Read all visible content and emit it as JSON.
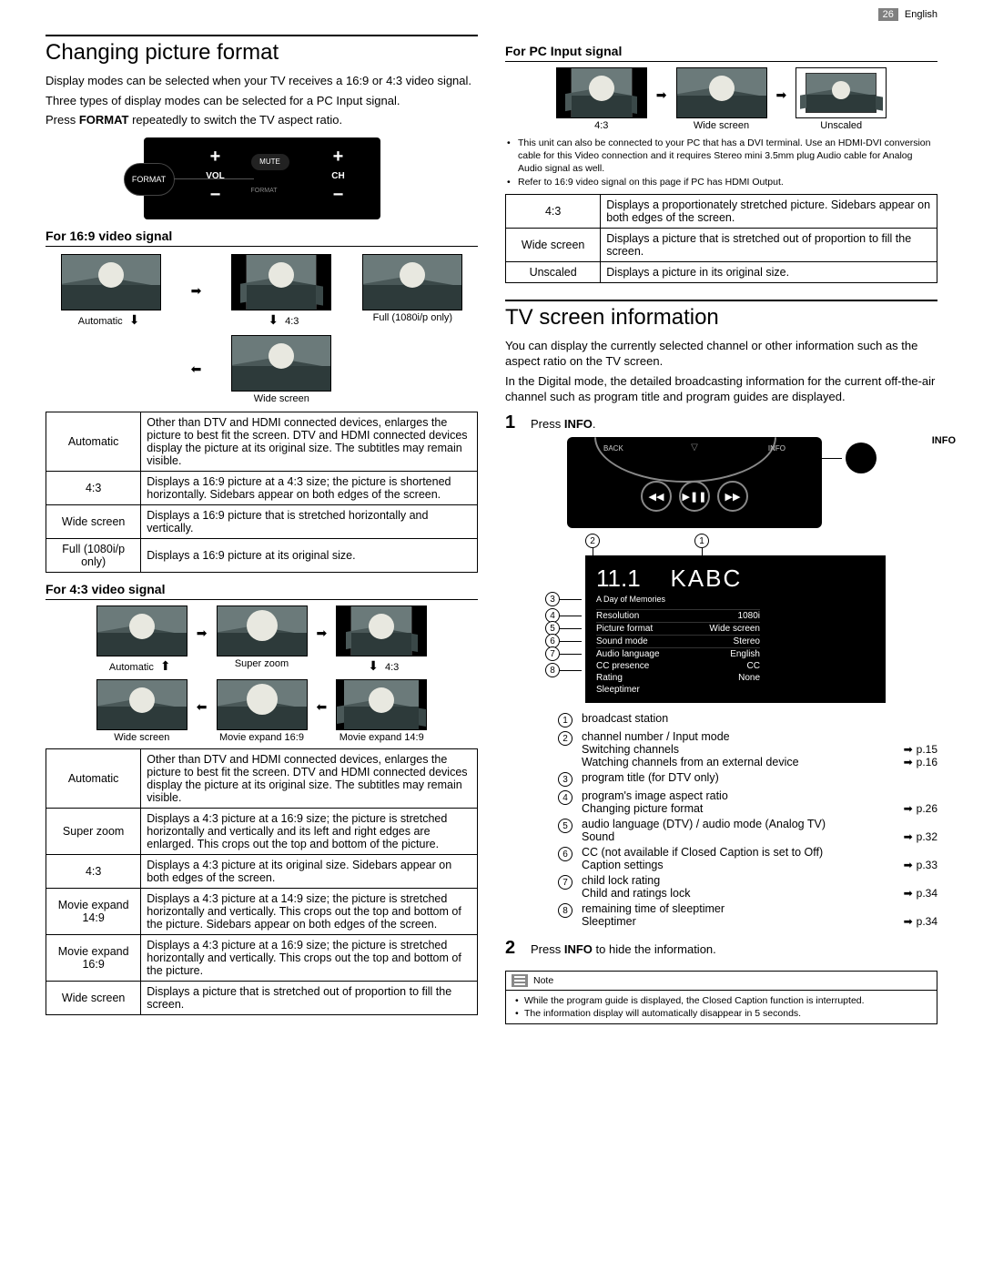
{
  "header": {
    "page": "26",
    "lang": "English"
  },
  "left": {
    "h1": "Changing picture format",
    "intro1": "Display modes can be selected when your TV receives a 16:9 or 4:3 video signal.",
    "intro2": "Three types of display modes can be selected for a PC Input signal.",
    "intro3_a": "Press ",
    "intro3_b": "FORMAT",
    "intro3_c": " repeatedly to switch the TV aspect ratio.",
    "remote": {
      "format": "FORMAT",
      "vol": "VOL",
      "ch": "CH",
      "mute": "MUTE",
      "fmt_small": "FORMAT"
    },
    "sec169": {
      "title": "For 16:9 video signal",
      "thumbs": {
        "automatic": "Automatic",
        "ratio43": "4:3",
        "full": "Full (1080i/p only)",
        "wide": "Wide screen"
      },
      "table": [
        {
          "k": "Automatic",
          "v": "Other than DTV and HDMI connected devices, enlarges the picture to best fit the screen.\nDTV and HDMI connected devices display the picture at its original size. The subtitles may remain visible."
        },
        {
          "k": "4:3",
          "v": "Displays a 16:9 picture at a 4:3 size; the picture is shortened horizontally.\nSidebars appear on both edges of the screen."
        },
        {
          "k": "Wide screen",
          "v": "Displays a 16:9 picture that is stretched horizontally and vertically."
        },
        {
          "k": "Full\n(1080i/p only)",
          "v": "Displays a 16:9 picture at its original size."
        }
      ]
    },
    "sec43": {
      "title": "For 4:3 video signal",
      "thumbs": {
        "automatic": "Automatic",
        "superzoom": "Super zoom",
        "ratio43": "4:3",
        "wide": "Wide screen",
        "me169": "Movie expand 16:9",
        "me149": "Movie expand 14:9"
      },
      "table": [
        {
          "k": "Automatic",
          "v": "Other than DTV and HDMI connected devices, enlarges the picture to best fit the screen.\nDTV and HDMI connected devices display the picture at its original size. The subtitles may remain visible."
        },
        {
          "k": "Super zoom",
          "v": "Displays a 4:3 picture at a 16:9 size; the picture is stretched horizontally and vertically and its left and right edges are enlarged. This crops out the top and bottom of the picture."
        },
        {
          "k": "4:3",
          "v": "Displays a 4:3 picture at its original size.\nSidebars appear on both edges of the screen."
        },
        {
          "k": "Movie expand 14:9",
          "v": "Displays a 4:3 picture at a 14:9 size; the picture is stretched horizontally and vertically.\nThis crops out the top and bottom of the picture. Sidebars appear on both edges of the screen."
        },
        {
          "k": "Movie expand 16:9",
          "v": "Displays a 4:3 picture at a 16:9 size; the picture is stretched horizontally and vertically.\nThis crops out the top and bottom of the picture."
        },
        {
          "k": "Wide screen",
          "v": "Displays a picture that is stretched out of proportion to fill the screen."
        }
      ]
    }
  },
  "right": {
    "secpc": {
      "title": "For PC Input signal",
      "thumbs": {
        "ratio43": "4:3",
        "wide": "Wide screen",
        "unscaled": "Unscaled"
      },
      "bullets": [
        "This unit can also be connected to your PC that has a DVI terminal. Use an HDMI-DVI conversion cable for this Video connection and it requires Stereo mini 3.5mm plug Audio cable for Analog Audio signal as well.",
        "Refer to 16:9 video signal on this page if PC has HDMI Output."
      ],
      "table": [
        {
          "k": "4:3",
          "v": "Displays a proportionately stretched picture.\nSidebars appear on both edges of the screen."
        },
        {
          "k": "Wide screen",
          "v": "Displays a picture that is stretched out of proportion to fill the screen."
        },
        {
          "k": "Unscaled",
          "v": "Displays a picture in its original size."
        }
      ]
    },
    "tvinfo": {
      "h1": "TV screen information",
      "p1": "You can display the currently selected channel or other information such as the aspect ratio on the TV screen.",
      "p2": "In the Digital mode, the detailed broadcasting information for the current off-the-air channel such as program title and program guides are displayed.",
      "step1_a": "Press ",
      "step1_b": "INFO",
      "step1_c": ".",
      "info_label": "INFO",
      "remote2": {
        "back": "BACK",
        "info": "INFO"
      },
      "osd": {
        "chan": "11.1",
        "station": "KABC",
        "title": "A Day of Memories",
        "rows": [
          {
            "k": "Resolution",
            "v": "1080i"
          },
          {
            "k": "Picture format",
            "v": "Wide screen"
          },
          {
            "k": "Sound mode",
            "v": "Stereo"
          },
          {
            "k": "Audio language",
            "v": "English"
          },
          {
            "k": "CC presence",
            "v": "CC"
          },
          {
            "k": "Rating",
            "v": "None"
          },
          {
            "k": "Sleeptimer",
            "v": ""
          }
        ]
      },
      "legend": [
        {
          "n": "1",
          "t": "broadcast station"
        },
        {
          "n": "2",
          "t": "channel number / Input mode",
          "refs": [
            {
              "label": "Switching channels",
              "pg": "p.15"
            },
            {
              "label": "Watching channels from an external device",
              "pg": "p.16"
            }
          ]
        },
        {
          "n": "3",
          "t": "program title (for DTV only)"
        },
        {
          "n": "4",
          "t": "program's image aspect ratio",
          "refs": [
            {
              "label": "Changing picture format",
              "pg": "p.26"
            }
          ]
        },
        {
          "n": "5",
          "t": "audio language (DTV) / audio mode (Analog TV)",
          "refs": [
            {
              "label": "Sound",
              "pg": "p.32"
            }
          ]
        },
        {
          "n": "6",
          "t": "CC (not available if Closed Caption is set to Off)",
          "refs": [
            {
              "label": "Caption settings",
              "pg": "p.33"
            }
          ]
        },
        {
          "n": "7",
          "t": "child lock rating",
          "refs": [
            {
              "label": "Child and ratings lock",
              "pg": "p.34"
            }
          ]
        },
        {
          "n": "8",
          "t": "remaining time of sleeptimer",
          "refs": [
            {
              "label": "Sleeptimer",
              "pg": "p.34"
            }
          ]
        }
      ],
      "step2_a": "Press ",
      "step2_b": "INFO",
      "step2_c": " to hide the information.",
      "note_title": "Note",
      "notes": [
        "While the program guide is displayed, the Closed Caption function is interrupted.",
        "The information display will automatically disappear in 5 seconds."
      ]
    }
  }
}
